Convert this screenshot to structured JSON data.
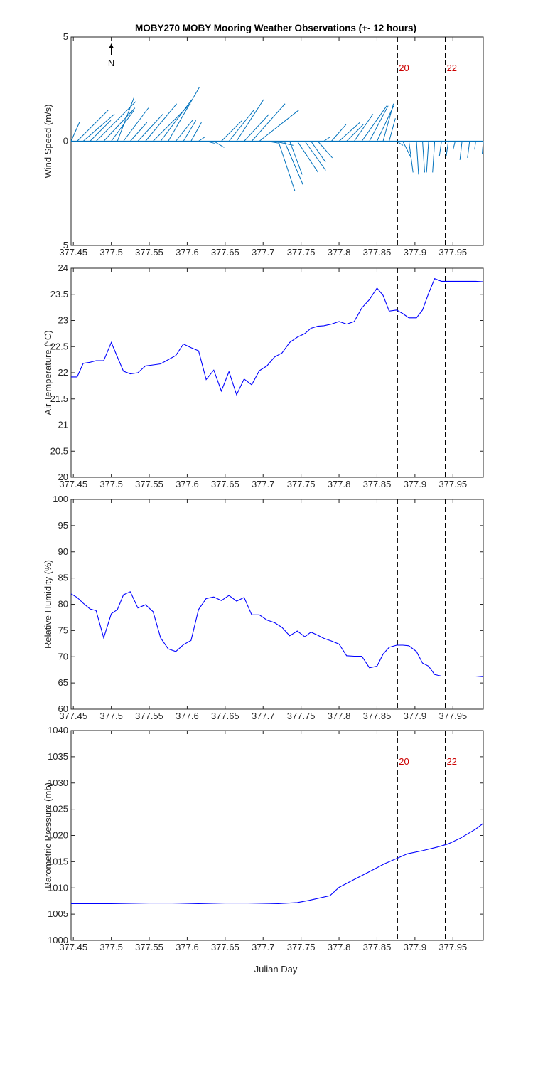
{
  "title": "MOBY270 MOBY Mooring Weather Observations (+- 12 hours)",
  "xlabel": "Julian Day",
  "xticks": [
    377.45,
    377.5,
    377.55,
    377.6,
    377.65,
    377.7,
    377.75,
    377.8,
    377.85,
    377.9,
    377.95
  ],
  "xtick_labels": [
    "377.45",
    "377.5",
    "377.55",
    "377.6",
    "377.65",
    "377.7",
    "377.75",
    "377.8",
    "377.85",
    "377.9",
    "377.95"
  ],
  "xlim": [
    377.447,
    377.99
  ],
  "colors": {
    "line": "#0000ff",
    "barb": "#0072bd",
    "marker_text": "#cc0000",
    "axis": "#262626"
  },
  "markers": [
    {
      "x": 377.877,
      "label": "20"
    },
    {
      "x": 377.94,
      "label": "22"
    }
  ],
  "north_label": "N",
  "chart_data": [
    {
      "type": "quiver",
      "ylabel": "Wind Speed (m/s)",
      "ylim": [
        -5,
        5
      ],
      "ytick_labels": [
        "5",
        "0",
        "5"
      ],
      "ytick_values": [
        5,
        0,
        -5
      ],
      "show_marker_labels": true,
      "baseline": 0,
      "vectors": [
        {
          "x": 377.447,
          "u": 0.4,
          "v": 0.9
        },
        {
          "x": 377.455,
          "u": 1.5,
          "v": 1.5
        },
        {
          "x": 377.463,
          "u": 1.5,
          "v": 1.3
        },
        {
          "x": 377.472,
          "u": 1.0,
          "v": 1.0
        },
        {
          "x": 377.48,
          "u": 1.9,
          "v": 1.9
        },
        {
          "x": 377.49,
          "u": 1.5,
          "v": 1.6
        },
        {
          "x": 377.5,
          "u": 1.1,
          "v": 1.5
        },
        {
          "x": 377.508,
          "u": 0.8,
          "v": 2.1
        },
        {
          "x": 377.516,
          "u": 1.2,
          "v": 1.6
        },
        {
          "x": 377.525,
          "u": 0.8,
          "v": 0.9
        },
        {
          "x": 377.535,
          "u": 1.2,
          "v": 1.3
        },
        {
          "x": 377.545,
          "u": 1.5,
          "v": 1.8
        },
        {
          "x": 377.555,
          "u": 1.8,
          "v": 1.8
        },
        {
          "x": 377.565,
          "u": 1.5,
          "v": 2.0
        },
        {
          "x": 377.575,
          "u": 1.5,
          "v": 2.6
        },
        {
          "x": 377.585,
          "u": 0.8,
          "v": 1.0
        },
        {
          "x": 377.595,
          "u": 0.6,
          "v": 1.0
        },
        {
          "x": 377.605,
          "u": 0.5,
          "v": 0.9
        },
        {
          "x": 377.615,
          "u": 0.3,
          "v": 0.2
        },
        {
          "x": 377.625,
          "u": 0.4,
          "v": -0.1
        },
        {
          "x": 377.635,
          "u": 0.5,
          "v": -0.3
        },
        {
          "x": 377.645,
          "u": 1.0,
          "v": 1.0
        },
        {
          "x": 377.655,
          "u": 1.2,
          "v": 1.5
        },
        {
          "x": 377.665,
          "u": 1.3,
          "v": 2.0
        },
        {
          "x": 377.675,
          "u": 1.2,
          "v": 1.3
        },
        {
          "x": 377.685,
          "u": 1.6,
          "v": 1.8
        },
        {
          "x": 377.695,
          "u": 1.9,
          "v": 1.5
        },
        {
          "x": 377.705,
          "u": 0.6,
          "v": -0.1
        },
        {
          "x": 377.715,
          "u": 0.9,
          "v": -0.2
        },
        {
          "x": 377.72,
          "u": 0.8,
          "v": -2.4
        },
        {
          "x": 377.728,
          "u": 0.9,
          "v": -2.1
        },
        {
          "x": 377.735,
          "u": 0.6,
          "v": -1.6
        },
        {
          "x": 377.745,
          "u": 1.0,
          "v": -1.5
        },
        {
          "x": 377.755,
          "u": 1.0,
          "v": -1.4
        },
        {
          "x": 377.763,
          "u": 0.7,
          "v": -1.0
        },
        {
          "x": 377.772,
          "u": 0.7,
          "v": -0.8
        },
        {
          "x": 377.78,
          "u": 0.3,
          "v": 0.2
        },
        {
          "x": 377.79,
          "u": 0.7,
          "v": 0.8
        },
        {
          "x": 377.8,
          "u": 1.0,
          "v": 0.9
        },
        {
          "x": 377.81,
          "u": 0.8,
          "v": 0.8
        },
        {
          "x": 377.82,
          "u": 0.9,
          "v": 1.3
        },
        {
          "x": 377.83,
          "u": 1.2,
          "v": 1.7
        },
        {
          "x": 377.84,
          "u": 0.9,
          "v": 1.7
        },
        {
          "x": 377.85,
          "u": 0.8,
          "v": 1.7
        },
        {
          "x": 377.858,
          "u": 0.5,
          "v": 1.8
        },
        {
          "x": 377.866,
          "u": 0.3,
          "v": 1.1
        },
        {
          "x": 377.876,
          "u": 0.3,
          "v": -0.2
        },
        {
          "x": 377.884,
          "u": 0.4,
          "v": -0.8
        },
        {
          "x": 377.892,
          "u": 0.2,
          "v": -1.5
        },
        {
          "x": 377.902,
          "u": 0.1,
          "v": -1.6
        },
        {
          "x": 377.91,
          "u": 0.1,
          "v": -1.5
        },
        {
          "x": 377.918,
          "u": -0.1,
          "v": -1.5
        },
        {
          "x": 377.926,
          "u": -0.1,
          "v": -1.5
        },
        {
          "x": 377.935,
          "u": -0.1,
          "v": -0.7
        },
        {
          "x": 377.944,
          "u": -0.1,
          "v": -0.7
        },
        {
          "x": 377.953,
          "u": -0.1,
          "v": -0.4
        },
        {
          "x": 377.962,
          "u": -0.1,
          "v": -0.9
        },
        {
          "x": 377.972,
          "u": -0.1,
          "v": -0.8
        },
        {
          "x": 377.98,
          "u": -0.05,
          "v": -0.4
        },
        {
          "x": 377.99,
          "u": -0.05,
          "v": -0.6
        }
      ]
    },
    {
      "type": "line",
      "ylabel": "Air Temperature (°C)",
      "ylim": [
        20,
        24
      ],
      "ytick_values": [
        20,
        20.5,
        21,
        21.5,
        22,
        22.5,
        23,
        23.5,
        24
      ],
      "ytick_labels": [
        "20",
        "20.5",
        "21",
        "21.5",
        "22",
        "22.5",
        "23",
        "23.5",
        "24"
      ],
      "show_marker_labels": false,
      "x": [
        377.447,
        377.455,
        377.463,
        377.472,
        377.48,
        377.49,
        377.5,
        377.508,
        377.516,
        377.525,
        377.535,
        377.545,
        377.555,
        377.565,
        377.575,
        377.585,
        377.595,
        377.605,
        377.615,
        377.625,
        377.635,
        377.645,
        377.655,
        377.665,
        377.675,
        377.685,
        377.695,
        377.705,
        377.715,
        377.725,
        377.735,
        377.745,
        377.755,
        377.763,
        377.772,
        377.78,
        377.79,
        377.8,
        377.81,
        377.82,
        377.83,
        377.84,
        377.85,
        377.858,
        377.866,
        377.876,
        377.884,
        377.892,
        377.902,
        377.91,
        377.918,
        377.926,
        377.935,
        377.944,
        377.953,
        377.962,
        377.972,
        377.98,
        377.99
      ],
      "y": [
        21.92,
        21.92,
        22.18,
        22.2,
        22.23,
        22.23,
        22.58,
        22.3,
        22.03,
        21.98,
        22.0,
        22.13,
        22.15,
        22.17,
        22.25,
        22.33,
        22.55,
        22.48,
        22.42,
        21.87,
        22.05,
        21.65,
        22.02,
        21.58,
        21.88,
        21.77,
        22.04,
        22.13,
        22.3,
        22.38,
        22.58,
        22.68,
        22.75,
        22.85,
        22.89,
        22.9,
        22.93,
        22.98,
        22.93,
        22.98,
        23.24,
        23.4,
        23.62,
        23.48,
        23.18,
        23.2,
        23.13,
        23.05,
        23.05,
        23.2,
        23.52,
        23.8,
        23.75,
        23.75,
        23.75,
        23.75,
        23.75,
        23.75,
        23.74
      ]
    },
    {
      "type": "line",
      "ylabel": "Relative Humidity (%)",
      "ylim": [
        60,
        100
      ],
      "ytick_values": [
        60,
        65,
        70,
        75,
        80,
        85,
        90,
        95,
        100
      ],
      "ytick_labels": [
        "60",
        "65",
        "70",
        "75",
        "80",
        "85",
        "90",
        "95",
        "100"
      ],
      "show_marker_labels": false,
      "x": [
        377.447,
        377.455,
        377.463,
        377.472,
        377.48,
        377.49,
        377.5,
        377.508,
        377.516,
        377.525,
        377.535,
        377.545,
        377.555,
        377.565,
        377.575,
        377.585,
        377.595,
        377.605,
        377.615,
        377.625,
        377.635,
        377.645,
        377.655,
        377.665,
        377.675,
        377.685,
        377.695,
        377.705,
        377.715,
        377.725,
        377.735,
        377.745,
        377.755,
        377.763,
        377.772,
        377.78,
        377.79,
        377.8,
        377.81,
        377.82,
        377.83,
        377.84,
        377.85,
        377.858,
        377.866,
        377.876,
        377.884,
        377.892,
        377.902,
        377.91,
        377.918,
        377.926,
        377.935,
        377.944,
        377.953,
        377.962,
        377.972,
        377.98,
        377.99
      ],
      "y": [
        82,
        81.3,
        80.2,
        79.1,
        78.8,
        73.6,
        78.2,
        79,
        81.8,
        82.4,
        79.3,
        79.9,
        78.6,
        73.6,
        71.5,
        71,
        72.3,
        73.1,
        79,
        81.1,
        81.4,
        80.7,
        81.7,
        80.6,
        81.3,
        78,
        78,
        77,
        76.5,
        75.6,
        74,
        74.9,
        73.8,
        74.7,
        74.1,
        73.5,
        73,
        72.4,
        70.2,
        70.1,
        70.1,
        67.9,
        68.2,
        70.5,
        71.8,
        72.2,
        72.2,
        72.1,
        71,
        68.8,
        68.2,
        66.6,
        66.3,
        66.3,
        66.3,
        66.3,
        66.3,
        66.3,
        66.2
      ]
    },
    {
      "type": "line",
      "ylabel": "Barometric Pressure (mb)",
      "ylim": [
        1000,
        1040
      ],
      "ytick_values": [
        1000,
        1005,
        1010,
        1015,
        1020,
        1025,
        1030,
        1035,
        1040
      ],
      "ytick_labels": [
        "1000",
        "1005",
        "1010",
        "1015",
        "1020",
        "1025",
        "1030",
        "1035",
        "1040"
      ],
      "show_marker_labels": true,
      "x": [
        377.447,
        377.5,
        377.55,
        377.58,
        377.615,
        377.65,
        377.68,
        377.72,
        377.745,
        377.76,
        377.775,
        377.788,
        377.8,
        377.82,
        377.84,
        377.86,
        377.876,
        377.89,
        377.91,
        377.93,
        377.944,
        377.96,
        377.98,
        377.99
      ],
      "y": [
        1007,
        1007,
        1007.1,
        1007.1,
        1007,
        1007.1,
        1007.1,
        1007,
        1007.2,
        1007.6,
        1008.1,
        1008.5,
        1010.1,
        1011.6,
        1013.1,
        1014.6,
        1015.6,
        1016.5,
        1017.1,
        1017.8,
        1018.4,
        1019.5,
        1021.2,
        1022.3
      ]
    }
  ]
}
